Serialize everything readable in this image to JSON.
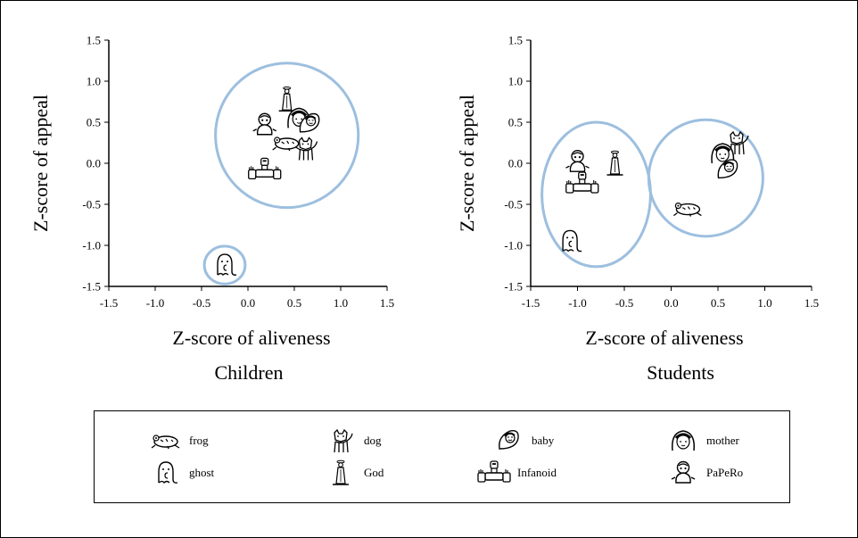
{
  "chart_data": [
    {
      "type": "scatter",
      "title": "Children",
      "xlabel": "Z-score of aliveness",
      "ylabel": "Z-score of appeal",
      "xlim": [
        -1.5,
        1.5
      ],
      "ylim": [
        -1.5,
        1.5
      ],
      "xticks": [
        "-1.5",
        "-1.0",
        "-0.5",
        "0.0",
        "0.5",
        "1.0",
        "1.5"
      ],
      "yticks": [
        "1.5",
        "1.0",
        "0.5",
        "0.0",
        "-0.5",
        "-1.0",
        "-1.5"
      ],
      "points": [
        {
          "item": "God",
          "x": 0.42,
          "y": 0.78
        },
        {
          "item": "mother",
          "x": 0.55,
          "y": 0.55
        },
        {
          "item": "PaPeRo",
          "x": 0.18,
          "y": 0.47
        },
        {
          "item": "baby",
          "x": 0.66,
          "y": 0.48
        },
        {
          "item": "dog",
          "x": 0.62,
          "y": 0.18
        },
        {
          "item": "frog",
          "x": 0.42,
          "y": 0.25
        },
        {
          "item": "Infanoid",
          "x": 0.18,
          "y": -0.08
        },
        {
          "item": "ghost",
          "x": -0.25,
          "y": -1.24
        }
      ],
      "clusters": [
        {
          "cx": 0.42,
          "cy": 0.34,
          "rx": 0.77,
          "ry": 0.88
        },
        {
          "cx": -0.25,
          "cy": -1.24,
          "rx": 0.22,
          "ry": 0.23
        }
      ]
    },
    {
      "type": "scatter",
      "title": "Students",
      "xlabel": "Z-score of aliveness",
      "ylabel": "Z-score of appeal",
      "xlim": [
        -1.5,
        1.5
      ],
      "ylim": [
        -1.5,
        1.5
      ],
      "xticks": [
        "-1.5",
        "-1.0",
        "-0.5",
        "0.0",
        "0.5",
        "1.0",
        "1.5"
      ],
      "yticks": [
        "1.5",
        "1.0",
        "0.5",
        "0.0",
        "-0.5",
        "-1.0",
        "-1.5"
      ],
      "points": [
        {
          "item": "PaPeRo",
          "x": -1.0,
          "y": 0.02
        },
        {
          "item": "God",
          "x": -0.6,
          "y": 0.0
        },
        {
          "item": "Infanoid",
          "x": -0.95,
          "y": -0.25
        },
        {
          "item": "ghost",
          "x": -1.08,
          "y": -0.95
        },
        {
          "item": "dog",
          "x": 0.7,
          "y": 0.25
        },
        {
          "item": "mother",
          "x": 0.55,
          "y": 0.12
        },
        {
          "item": "baby",
          "x": 0.6,
          "y": -0.08
        },
        {
          "item": "frog",
          "x": 0.18,
          "y": -0.55
        }
      ],
      "clusters": [
        {
          "cx": -0.8,
          "cy": -0.38,
          "rx": 0.58,
          "ry": 0.88
        },
        {
          "cx": 0.37,
          "cy": -0.18,
          "rx": 0.61,
          "ry": 0.71
        }
      ]
    }
  ],
  "legend": {
    "items": [
      {
        "icon": "frog-icon",
        "label": "frog"
      },
      {
        "icon": "dog-icon",
        "label": "dog"
      },
      {
        "icon": "baby-icon",
        "label": "baby"
      },
      {
        "icon": "mother-icon",
        "label": "mother"
      },
      {
        "icon": "ghost-icon",
        "label": "ghost"
      },
      {
        "icon": "god-icon",
        "label": "God"
      },
      {
        "icon": "infanoid-icon",
        "label": "Infanoid"
      },
      {
        "icon": "papero-icon",
        "label": "PaPeRo"
      }
    ]
  },
  "colors": {
    "cluster_circle": "#9dbfdf",
    "axis": "#000000"
  }
}
